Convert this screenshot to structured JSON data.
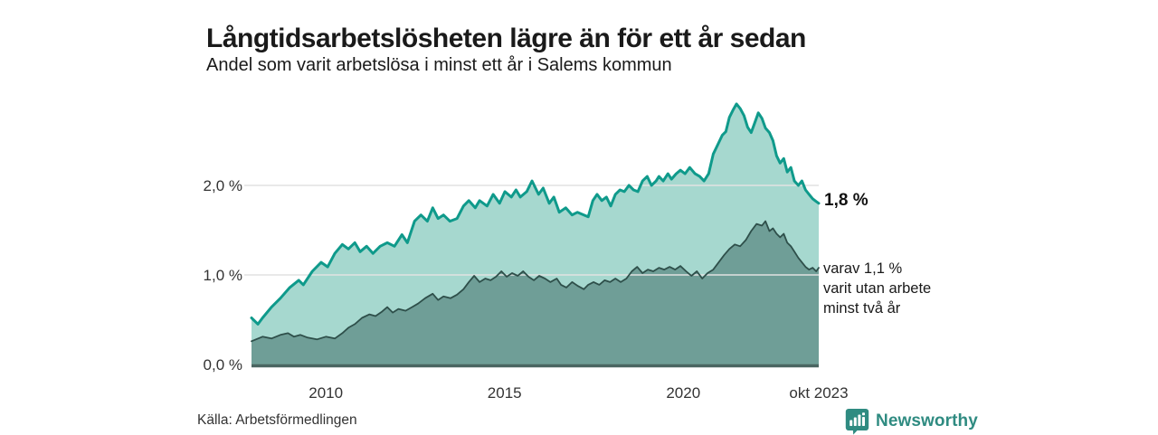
{
  "header": {
    "title": "Långtidsarbetslösheten lägre än för ett år sedan",
    "subtitle": "Andel som varit arbetslösa i minst ett år i Salems kommun"
  },
  "annotations": {
    "total_end_label": "1,8 %",
    "subset_lines": [
      "varav 1,1 %",
      "varit utan arbete",
      "minst två år"
    ]
  },
  "footer": {
    "source": "Källa: Arbetsförmedlingen",
    "brand_name": "Newsworthy"
  },
  "colors": {
    "total_line": "#0f9a8b",
    "total_fill": "#a6d8cf",
    "subset_line": "#2e4f4a",
    "subset_fill": "#6f9e97",
    "gridline": "#e2e2e2",
    "axis_line": "#4a6561",
    "text": "#333333",
    "brand": "#2f8b81"
  },
  "chart_data": {
    "type": "area",
    "title": "Långtidsarbetslösheten lägre än för ett år sedan",
    "subtitle": "Andel som varit arbetslösa i minst ett år i Salems kommun",
    "unit": "%",
    "x_axis": {
      "min": 2007.92,
      "max": 2023.79,
      "ticks": [
        {
          "year": 2010,
          "label": "2010"
        },
        {
          "year": 2015,
          "label": "2015"
        },
        {
          "year": 2020,
          "label": "2020"
        },
        {
          "year": 2023.79,
          "label": "okt 2023"
        }
      ]
    },
    "y_axis": {
      "min": 0,
      "max": 3.0,
      "ticks": [
        {
          "value": 0,
          "label": "0,0 %"
        },
        {
          "value": 1,
          "label": "1,0 %"
        },
        {
          "value": 2,
          "label": "2,0 %"
        }
      ]
    },
    "legend": "none",
    "grid": true,
    "series": [
      {
        "name": "Arbetslösa minst ett år",
        "end_value": 1.8,
        "points": [
          [
            2007.92,
            0.52
          ],
          [
            2008.1,
            0.45
          ],
          [
            2008.23,
            0.52
          ],
          [
            2008.48,
            0.64
          ],
          [
            2008.73,
            0.74
          ],
          [
            2008.99,
            0.86
          ],
          [
            2009.24,
            0.94
          ],
          [
            2009.37,
            0.89
          ],
          [
            2009.62,
            1.04
          ],
          [
            2009.87,
            1.14
          ],
          [
            2010.05,
            1.09
          ],
          [
            2010.25,
            1.24
          ],
          [
            2010.46,
            1.34
          ],
          [
            2010.63,
            1.29
          ],
          [
            2010.81,
            1.36
          ],
          [
            2010.96,
            1.26
          ],
          [
            2011.14,
            1.32
          ],
          [
            2011.32,
            1.24
          ],
          [
            2011.52,
            1.32
          ],
          [
            2011.72,
            1.36
          ],
          [
            2011.92,
            1.32
          ],
          [
            2012.13,
            1.45
          ],
          [
            2012.28,
            1.36
          ],
          [
            2012.48,
            1.6
          ],
          [
            2012.66,
            1.67
          ],
          [
            2012.84,
            1.6
          ],
          [
            2012.99,
            1.75
          ],
          [
            2013.14,
            1.63
          ],
          [
            2013.29,
            1.67
          ],
          [
            2013.47,
            1.6
          ],
          [
            2013.67,
            1.63
          ],
          [
            2013.85,
            1.77
          ],
          [
            2014.0,
            1.83
          ],
          [
            2014.18,
            1.75
          ],
          [
            2014.3,
            1.83
          ],
          [
            2014.51,
            1.77
          ],
          [
            2014.68,
            1.9
          ],
          [
            2014.86,
            1.8
          ],
          [
            2015.01,
            1.93
          ],
          [
            2015.19,
            1.87
          ],
          [
            2015.32,
            1.95
          ],
          [
            2015.44,
            1.87
          ],
          [
            2015.62,
            1.93
          ],
          [
            2015.77,
            2.05
          ],
          [
            2015.95,
            1.9
          ],
          [
            2016.08,
            1.97
          ],
          [
            2016.25,
            1.8
          ],
          [
            2016.38,
            1.87
          ],
          [
            2016.53,
            1.7
          ],
          [
            2016.71,
            1.75
          ],
          [
            2016.89,
            1.67
          ],
          [
            2017.04,
            1.7
          ],
          [
            2017.22,
            1.67
          ],
          [
            2017.34,
            1.65
          ],
          [
            2017.47,
            1.83
          ],
          [
            2017.59,
            1.9
          ],
          [
            2017.72,
            1.83
          ],
          [
            2017.85,
            1.87
          ],
          [
            2017.97,
            1.77
          ],
          [
            2018.1,
            1.9
          ],
          [
            2018.23,
            1.95
          ],
          [
            2018.35,
            1.93
          ],
          [
            2018.48,
            2.0
          ],
          [
            2018.61,
            1.95
          ],
          [
            2018.73,
            1.93
          ],
          [
            2018.86,
            2.05
          ],
          [
            2018.99,
            2.1
          ],
          [
            2019.11,
            2.0
          ],
          [
            2019.24,
            2.05
          ],
          [
            2019.32,
            2.1
          ],
          [
            2019.44,
            2.05
          ],
          [
            2019.57,
            2.13
          ],
          [
            2019.67,
            2.07
          ],
          [
            2019.8,
            2.13
          ],
          [
            2019.92,
            2.17
          ],
          [
            2020.05,
            2.13
          ],
          [
            2020.18,
            2.2
          ],
          [
            2020.33,
            2.13
          ],
          [
            2020.46,
            2.1
          ],
          [
            2020.58,
            2.05
          ],
          [
            2020.71,
            2.13
          ],
          [
            2020.84,
            2.35
          ],
          [
            2020.96,
            2.45
          ],
          [
            2021.09,
            2.56
          ],
          [
            2021.19,
            2.6
          ],
          [
            2021.29,
            2.76
          ],
          [
            2021.39,
            2.84
          ],
          [
            2021.49,
            2.91
          ],
          [
            2021.59,
            2.86
          ],
          [
            2021.7,
            2.78
          ],
          [
            2021.8,
            2.65
          ],
          [
            2021.9,
            2.59
          ],
          [
            2022.0,
            2.7
          ],
          [
            2022.1,
            2.81
          ],
          [
            2022.2,
            2.75
          ],
          [
            2022.3,
            2.64
          ],
          [
            2022.41,
            2.59
          ],
          [
            2022.51,
            2.5
          ],
          [
            2022.61,
            2.33
          ],
          [
            2022.71,
            2.25
          ],
          [
            2022.81,
            2.3
          ],
          [
            2022.91,
            2.15
          ],
          [
            2023.01,
            2.2
          ],
          [
            2023.11,
            2.05
          ],
          [
            2023.22,
            2.0
          ],
          [
            2023.32,
            2.05
          ],
          [
            2023.42,
            1.95
          ],
          [
            2023.52,
            1.9
          ],
          [
            2023.62,
            1.85
          ],
          [
            2023.72,
            1.82
          ],
          [
            2023.79,
            1.8
          ]
        ]
      },
      {
        "name": "varav utan arbete minst två år",
        "end_value": 1.1,
        "points": [
          [
            2007.92,
            0.26
          ],
          [
            2008.23,
            0.31
          ],
          [
            2008.48,
            0.29
          ],
          [
            2008.73,
            0.33
          ],
          [
            2008.94,
            0.35
          ],
          [
            2009.11,
            0.31
          ],
          [
            2009.29,
            0.33
          ],
          [
            2009.49,
            0.3
          ],
          [
            2009.75,
            0.28
          ],
          [
            2010.0,
            0.31
          ],
          [
            2010.25,
            0.29
          ],
          [
            2010.46,
            0.35
          ],
          [
            2010.63,
            0.41
          ],
          [
            2010.81,
            0.45
          ],
          [
            2011.01,
            0.52
          ],
          [
            2011.22,
            0.56
          ],
          [
            2011.39,
            0.54
          ],
          [
            2011.57,
            0.59
          ],
          [
            2011.72,
            0.64
          ],
          [
            2011.87,
            0.58
          ],
          [
            2012.03,
            0.62
          ],
          [
            2012.23,
            0.6
          ],
          [
            2012.41,
            0.64
          ],
          [
            2012.58,
            0.68
          ],
          [
            2012.78,
            0.74
          ],
          [
            2012.99,
            0.79
          ],
          [
            2013.14,
            0.72
          ],
          [
            2013.29,
            0.76
          ],
          [
            2013.49,
            0.74
          ],
          [
            2013.67,
            0.78
          ],
          [
            2013.85,
            0.84
          ],
          [
            2014.0,
            0.92
          ],
          [
            2014.15,
            0.99
          ],
          [
            2014.3,
            0.92
          ],
          [
            2014.46,
            0.96
          ],
          [
            2014.61,
            0.94
          ],
          [
            2014.76,
            0.98
          ],
          [
            2014.91,
            1.04
          ],
          [
            2015.06,
            0.98
          ],
          [
            2015.21,
            1.02
          ],
          [
            2015.37,
            0.99
          ],
          [
            2015.52,
            1.04
          ],
          [
            2015.67,
            0.98
          ],
          [
            2015.82,
            0.94
          ],
          [
            2015.97,
            0.99
          ],
          [
            2016.13,
            0.96
          ],
          [
            2016.28,
            0.92
          ],
          [
            2016.46,
            0.96
          ],
          [
            2016.58,
            0.89
          ],
          [
            2016.73,
            0.86
          ],
          [
            2016.89,
            0.92
          ],
          [
            2017.04,
            0.88
          ],
          [
            2017.22,
            0.84
          ],
          [
            2017.34,
            0.89
          ],
          [
            2017.49,
            0.92
          ],
          [
            2017.65,
            0.89
          ],
          [
            2017.8,
            0.94
          ],
          [
            2017.95,
            0.92
          ],
          [
            2018.1,
            0.96
          ],
          [
            2018.25,
            0.92
          ],
          [
            2018.41,
            0.96
          ],
          [
            2018.56,
            1.04
          ],
          [
            2018.71,
            1.09
          ],
          [
            2018.86,
            1.02
          ],
          [
            2019.01,
            1.06
          ],
          [
            2019.16,
            1.04
          ],
          [
            2019.32,
            1.08
          ],
          [
            2019.47,
            1.06
          ],
          [
            2019.62,
            1.09
          ],
          [
            2019.77,
            1.06
          ],
          [
            2019.92,
            1.1
          ],
          [
            2020.08,
            1.04
          ],
          [
            2020.23,
            0.99
          ],
          [
            2020.38,
            1.04
          ],
          [
            2020.53,
            0.96
          ],
          [
            2020.68,
            1.02
          ],
          [
            2020.84,
            1.06
          ],
          [
            2020.99,
            1.14
          ],
          [
            2021.14,
            1.22
          ],
          [
            2021.29,
            1.29
          ],
          [
            2021.44,
            1.34
          ],
          [
            2021.59,
            1.32
          ],
          [
            2021.75,
            1.39
          ],
          [
            2021.9,
            1.49
          ],
          [
            2022.05,
            1.57
          ],
          [
            2022.2,
            1.55
          ],
          [
            2022.3,
            1.6
          ],
          [
            2022.41,
            1.49
          ],
          [
            2022.51,
            1.52
          ],
          [
            2022.61,
            1.46
          ],
          [
            2022.71,
            1.42
          ],
          [
            2022.81,
            1.46
          ],
          [
            2022.91,
            1.36
          ],
          [
            2023.01,
            1.32
          ],
          [
            2023.11,
            1.26
          ],
          [
            2023.22,
            1.19
          ],
          [
            2023.32,
            1.14
          ],
          [
            2023.42,
            1.09
          ],
          [
            2023.52,
            1.06
          ],
          [
            2023.62,
            1.08
          ],
          [
            2023.72,
            1.04
          ],
          [
            2023.79,
            1.08
          ]
        ]
      }
    ]
  }
}
